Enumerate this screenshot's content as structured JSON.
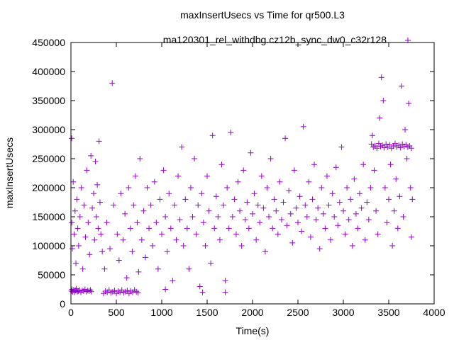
{
  "chart_data": {
    "type": "scatter",
    "title": "maxInsertUsecs vs Time for qr500.L3",
    "xlabel": "Time(s)",
    "ylabel": "maxInsertUsecs",
    "xlim": [
      0,
      4000
    ],
    "ylim": [
      0,
      450000
    ],
    "xticks": [
      0,
      500,
      1000,
      1500,
      2000,
      2500,
      3000,
      3500,
      4000
    ],
    "yticks": [
      0,
      50000,
      100000,
      150000,
      200000,
      250000,
      300000,
      350000,
      400000,
      450000
    ],
    "grid": false,
    "legend_position": "top-right",
    "series": [
      {
        "name": "ma120301_rel_withdbg.cz12b_sync_dw0_c32r128",
        "color": "#9400d3",
        "marker": "plus",
        "points": [
          [
            5,
            22000
          ],
          [
            12,
            25000
          ],
          [
            20,
            21000
          ],
          [
            30,
            24000
          ],
          [
            40,
            20000
          ],
          [
            50,
            23000
          ],
          [
            60,
            26000
          ],
          [
            70,
            21000
          ],
          [
            80,
            22000
          ],
          [
            95,
            24000
          ],
          [
            110,
            20000
          ],
          [
            125,
            23000
          ],
          [
            140,
            22000
          ],
          [
            155,
            25000
          ],
          [
            170,
            21000
          ],
          [
            185,
            23000
          ],
          [
            200,
            22000
          ],
          [
            215,
            24000
          ],
          [
            225,
            21000
          ],
          [
            8,
            285000
          ],
          [
            10,
            140000
          ],
          [
            15,
            95000
          ],
          [
            25,
            210000
          ],
          [
            35,
            120000
          ],
          [
            45,
            160000
          ],
          [
            55,
            70000
          ],
          [
            65,
            180000
          ],
          [
            75,
            130000
          ],
          [
            85,
            100000
          ],
          [
            100,
            150000
          ],
          [
            115,
            200000
          ],
          [
            130,
            60000
          ],
          [
            145,
            170000
          ],
          [
            160,
            115000
          ],
          [
            175,
            230000
          ],
          [
            190,
            140000
          ],
          [
            205,
            85000
          ],
          [
            220,
            255000
          ],
          [
            235,
            165000
          ],
          [
            250,
            190000
          ],
          [
            260,
            110000
          ],
          [
            270,
            245000
          ],
          [
            280,
            150000
          ],
          [
            290,
            205000
          ],
          [
            300,
            130000
          ],
          [
            310,
            280000
          ],
          [
            320,
            175000
          ],
          [
            330,
            120000
          ],
          [
            345,
            90000
          ],
          [
            360,
            18000
          ],
          [
            380,
            22000
          ],
          [
            400,
            20000
          ],
          [
            420,
            24000
          ],
          [
            440,
            19000
          ],
          [
            460,
            21000
          ],
          [
            480,
            23000
          ],
          [
            500,
            18000
          ],
          [
            520,
            22000
          ],
          [
            540,
            20000
          ],
          [
            560,
            24000
          ],
          [
            580,
            19000
          ],
          [
            600,
            21000
          ],
          [
            620,
            23000
          ],
          [
            640,
            18000
          ],
          [
            660,
            22000
          ],
          [
            680,
            20000
          ],
          [
            700,
            24000
          ],
          [
            720,
            21000
          ],
          [
            740,
            19000
          ],
          [
            455,
            380000
          ],
          [
            370,
            60000
          ],
          [
            395,
            140000
          ],
          [
            430,
            95000
          ],
          [
            470,
            170000
          ],
          [
            510,
            120000
          ],
          [
            530,
            75000
          ],
          [
            550,
            190000
          ],
          [
            575,
            110000
          ],
          [
            595,
            155000
          ],
          [
            615,
            45000
          ],
          [
            635,
            200000
          ],
          [
            655,
            130000
          ],
          [
            675,
            90000
          ],
          [
            690,
            170000
          ],
          [
            710,
            220000
          ],
          [
            730,
            140000
          ],
          [
            745,
            55000
          ],
          [
            760,
            250000
          ],
          [
            780,
            110000
          ],
          [
            800,
            160000
          ],
          [
            820,
            80000
          ],
          [
            840,
            200000
          ],
          [
            860,
            130000
          ],
          [
            880,
            170000
          ],
          [
            900,
            100000
          ],
          [
            920,
            210000
          ],
          [
            940,
            140000
          ],
          [
            960,
            60000
          ],
          [
            980,
            180000
          ],
          [
            1000,
            120000
          ],
          [
            1020,
            230000
          ],
          [
            1040,
            150000
          ],
          [
            1060,
            90000
          ],
          [
            1080,
            190000
          ],
          [
            1100,
            130000
          ],
          [
            1120,
            40000
          ],
          [
            1140,
            170000
          ],
          [
            1160,
            110000
          ],
          [
            1180,
            220000
          ],
          [
            1200,
            145000
          ],
          [
            1220,
            270000
          ],
          [
            1240,
            100000
          ],
          [
            1260,
            180000
          ],
          [
            1280,
            130000
          ],
          [
            1300,
            60000
          ],
          [
            1320,
            200000
          ],
          [
            1340,
            150000
          ],
          [
            1360,
            250000
          ],
          [
            1380,
            120000
          ],
          [
            1400,
            170000
          ],
          [
            1420,
            30000
          ],
          [
            1440,
            190000
          ],
          [
            1460,
            140000
          ],
          [
            1480,
            100000
          ],
          [
            1500,
            220000
          ],
          [
            1520,
            160000
          ],
          [
            1540,
            70000
          ],
          [
            1560,
            290000
          ],
          [
            1580,
            130000
          ],
          [
            1600,
            185000
          ],
          [
            1620,
            150000
          ],
          [
            1640,
            110000
          ],
          [
            1660,
            240000
          ],
          [
            1680,
            170000
          ],
          [
            1700,
            40000
          ],
          [
            1720,
            200000
          ],
          [
            1740,
            130000
          ],
          [
            1760,
            295000
          ],
          [
            1040,
            25000
          ],
          [
            1450,
            20000
          ],
          [
            1700,
            20000
          ],
          [
            1780,
            150000
          ],
          [
            1800,
            180000
          ],
          [
            1820,
            120000
          ],
          [
            1840,
            210000
          ],
          [
            1860,
            160000
          ],
          [
            1880,
            100000
          ],
          [
            1900,
            230000
          ],
          [
            1920,
            145000
          ],
          [
            1940,
            175000
          ],
          [
            1960,
            130000
          ],
          [
            1980,
            260000
          ],
          [
            2000,
            155000
          ],
          [
            2020,
            190000
          ],
          [
            2040,
            110000
          ],
          [
            2060,
            170000
          ],
          [
            2080,
            140000
          ],
          [
            2100,
            220000
          ],
          [
            2120,
            165000
          ],
          [
            2140,
            90000
          ],
          [
            2160,
            200000
          ],
          [
            2180,
            150000
          ],
          [
            2200,
            250000
          ],
          [
            2220,
            130000
          ],
          [
            2240,
            180000
          ],
          [
            2260,
            160000
          ],
          [
            2280,
            120000
          ],
          [
            2300,
            210000
          ],
          [
            2320,
            145000
          ],
          [
            2340,
            175000
          ],
          [
            2360,
            285000
          ],
          [
            2380,
            135000
          ],
          [
            2400,
            195000
          ],
          [
            2420,
            155000
          ],
          [
            2440,
            105000
          ],
          [
            2460,
            230000
          ],
          [
            2480,
            165000
          ],
          [
            2500,
            140000
          ],
          [
            2520,
            185000
          ],
          [
            2540,
            125000
          ],
          [
            2560,
            305000
          ],
          [
            2580,
            170000
          ],
          [
            2600,
            150000
          ],
          [
            2620,
            210000
          ],
          [
            2640,
            115000
          ],
          [
            2660,
            180000
          ],
          [
            2680,
            240000
          ],
          [
            2700,
            145000
          ],
          [
            2720,
            165000
          ],
          [
            2740,
            95000
          ],
          [
            2760,
            200000
          ],
          [
            2780,
            155000
          ],
          [
            2800,
            130000
          ],
          [
            2820,
            220000
          ],
          [
            2840,
            170000
          ],
          [
            2860,
            110000
          ],
          [
            2880,
            190000
          ],
          [
            2900,
            150000
          ],
          [
            2920,
            235000
          ],
          [
            2940,
            135000
          ],
          [
            2960,
            175000
          ],
          [
            2980,
            270000
          ],
          [
            3000,
            160000
          ],
          [
            3020,
            120000
          ],
          [
            3040,
            200000
          ],
          [
            3060,
            145000
          ],
          [
            3080,
            180000
          ],
          [
            3100,
            100000
          ],
          [
            3120,
            215000
          ],
          [
            3140,
            155000
          ],
          [
            3160,
            130000
          ],
          [
            3180,
            190000
          ],
          [
            3200,
            165000
          ],
          [
            3220,
            240000
          ],
          [
            3240,
            110000
          ],
          [
            3260,
            175000
          ],
          [
            3280,
            145000
          ],
          [
            3300,
            200000
          ],
          [
            3310,
            275000
          ],
          [
            3330,
            270000
          ],
          [
            3350,
            272000
          ],
          [
            3370,
            268000
          ],
          [
            3390,
            276000
          ],
          [
            3410,
            271000
          ],
          [
            3430,
            273000
          ],
          [
            3450,
            269000
          ],
          [
            3470,
            275000
          ],
          [
            3490,
            270000
          ],
          [
            3510,
            274000
          ],
          [
            3530,
            268000
          ],
          [
            3550,
            272000
          ],
          [
            3570,
            276000
          ],
          [
            3590,
            270000
          ],
          [
            3610,
            273000
          ],
          [
            3630,
            269000
          ],
          [
            3650,
            275000
          ],
          [
            3670,
            271000
          ],
          [
            3690,
            274000
          ],
          [
            3710,
            270000
          ],
          [
            3730,
            272000
          ],
          [
            3750,
            268000
          ],
          [
            3320,
            290000
          ],
          [
            3340,
            230000
          ],
          [
            3360,
            160000
          ],
          [
            3380,
            120000
          ],
          [
            3400,
            320000
          ],
          [
            3420,
            390000
          ],
          [
            3440,
            350000
          ],
          [
            3460,
            200000
          ],
          [
            3480,
            140000
          ],
          [
            3500,
            180000
          ],
          [
            3520,
            240000
          ],
          [
            3540,
            100000
          ],
          [
            3560,
            160000
          ],
          [
            3580,
            215000
          ],
          [
            3600,
            130000
          ],
          [
            3620,
            185000
          ],
          [
            3640,
            375000
          ],
          [
            3660,
            150000
          ],
          [
            3680,
            300000
          ],
          [
            3700,
            250000
          ],
          [
            3720,
            345000
          ],
          [
            3740,
            200000
          ],
          [
            3750,
            115000
          ],
          [
            3760,
            180000
          ]
        ]
      }
    ]
  }
}
